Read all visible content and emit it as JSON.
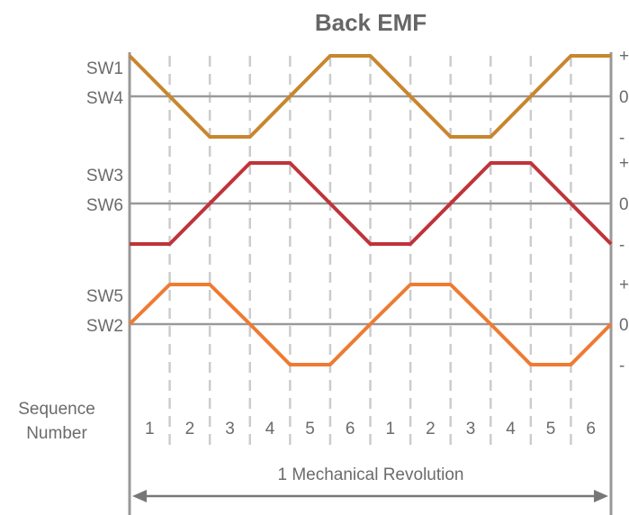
{
  "title": "Back EMF",
  "row_labels": [
    {
      "top": "SW1",
      "bottom": "SW4"
    },
    {
      "top": "SW3",
      "bottom": "SW6"
    },
    {
      "top": "SW5",
      "bottom": "SW2"
    }
  ],
  "level_labels": {
    "plus": "+",
    "zero": "0",
    "minus": "-"
  },
  "sequence_label": "Sequence\nNumber",
  "sequence_numbers": [
    "1",
    "2",
    "3",
    "4",
    "5",
    "6",
    "1",
    "2",
    "3",
    "4",
    "5",
    "6"
  ],
  "footer_label": "1 Mechanical Revolution",
  "colors": {
    "sw1_sw4": "#c8862e",
    "sw3_sw6": "#c0333a",
    "sw5_sw2": "#ee7b33",
    "axis": "#999999",
    "grid": "#cccccc"
  },
  "waveforms": [
    {
      "name": "SW1/SW4",
      "color_key": "sw1_sw4",
      "levels": [
        1,
        0,
        -1,
        -1,
        0,
        1,
        1,
        0,
        -1,
        -1,
        0,
        1,
        1
      ]
    },
    {
      "name": "SW3/SW6",
      "color_key": "sw3_sw6",
      "levels": [
        -1,
        -1,
        0,
        1,
        1,
        0,
        -1,
        -1,
        0,
        1,
        1,
        0,
        -1
      ]
    },
    {
      "name": "SW5/SW2",
      "color_key": "sw5_sw2",
      "levels": [
        0,
        1,
        1,
        0,
        -1,
        -1,
        0,
        1,
        1,
        0,
        -1,
        -1,
        0
      ]
    }
  ]
}
